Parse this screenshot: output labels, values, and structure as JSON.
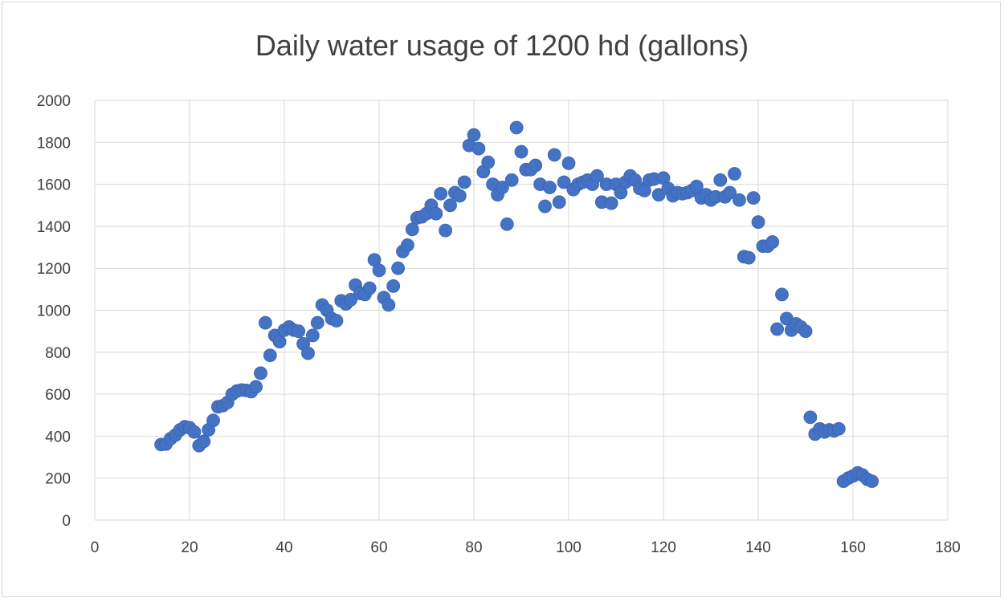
{
  "chart_data": {
    "type": "scatter",
    "title": "Daily water usage of 1200 hd (gallons)",
    "xlabel": "",
    "ylabel": "",
    "xlim": [
      0,
      180
    ],
    "ylim": [
      0,
      2000
    ],
    "x_ticks": [
      0,
      20,
      40,
      60,
      80,
      100,
      120,
      140,
      160,
      180
    ],
    "y_ticks": [
      0,
      200,
      400,
      600,
      800,
      1000,
      1200,
      1400,
      1600,
      1800,
      2000
    ],
    "grid": true,
    "legend": "none",
    "marker_color": "#4472C4",
    "points": [
      [
        14,
        360
      ],
      [
        15,
        362
      ],
      [
        16,
        388
      ],
      [
        17,
        405
      ],
      [
        18,
        430
      ],
      [
        19,
        445
      ],
      [
        20,
        440
      ],
      [
        21,
        420
      ],
      [
        22,
        355
      ],
      [
        23,
        375
      ],
      [
        24,
        430
      ],
      [
        25,
        475
      ],
      [
        26,
        540
      ],
      [
        27,
        545
      ],
      [
        28,
        560
      ],
      [
        29,
        600
      ],
      [
        30,
        615
      ],
      [
        31,
        620
      ],
      [
        32,
        618
      ],
      [
        33,
        612
      ],
      [
        34,
        635
      ],
      [
        35,
        700
      ],
      [
        36,
        940
      ],
      [
        37,
        785
      ],
      [
        38,
        880
      ],
      [
        39,
        850
      ],
      [
        40,
        905
      ],
      [
        41,
        920
      ],
      [
        42,
        905
      ],
      [
        43,
        900
      ],
      [
        44,
        840
      ],
      [
        45,
        795
      ],
      [
        46,
        880
      ],
      [
        47,
        940
      ],
      [
        48,
        1025
      ],
      [
        49,
        1000
      ],
      [
        50,
        960
      ],
      [
        51,
        950
      ],
      [
        52,
        1045
      ],
      [
        53,
        1030
      ],
      [
        54,
        1050
      ],
      [
        55,
        1120
      ],
      [
        56,
        1080
      ],
      [
        57,
        1075
      ],
      [
        58,
        1105
      ],
      [
        59,
        1240
      ],
      [
        60,
        1190
      ],
      [
        61,
        1060
      ],
      [
        62,
        1025
      ],
      [
        63,
        1115
      ],
      [
        64,
        1200
      ],
      [
        65,
        1280
      ],
      [
        66,
        1310
      ],
      [
        67,
        1385
      ],
      [
        68,
        1440
      ],
      [
        69,
        1445
      ],
      [
        70,
        1460
      ],
      [
        71,
        1500
      ],
      [
        72,
        1460
      ],
      [
        73,
        1555
      ],
      [
        74,
        1380
      ],
      [
        75,
        1500
      ],
      [
        76,
        1560
      ],
      [
        77,
        1545
      ],
      [
        78,
        1610
      ],
      [
        79,
        1785
      ],
      [
        80,
        1835
      ],
      [
        81,
        1770
      ],
      [
        82,
        1660
      ],
      [
        83,
        1705
      ],
      [
        84,
        1600
      ],
      [
        85,
        1550
      ],
      [
        86,
        1585
      ],
      [
        87,
        1410
      ],
      [
        88,
        1620
      ],
      [
        89,
        1870
      ],
      [
        90,
        1755
      ],
      [
        91,
        1670
      ],
      [
        92,
        1670
      ],
      [
        93,
        1690
      ],
      [
        94,
        1600
      ],
      [
        95,
        1495
      ],
      [
        96,
        1585
      ],
      [
        97,
        1740
      ],
      [
        98,
        1515
      ],
      [
        99,
        1610
      ],
      [
        100,
        1700
      ],
      [
        101,
        1575
      ],
      [
        102,
        1600
      ],
      [
        103,
        1610
      ],
      [
        104,
        1620
      ],
      [
        105,
        1600
      ],
      [
        106,
        1640
      ],
      [
        107,
        1515
      ],
      [
        108,
        1600
      ],
      [
        109,
        1510
      ],
      [
        110,
        1600
      ],
      [
        111,
        1560
      ],
      [
        112,
        1610
      ],
      [
        113,
        1640
      ],
      [
        114,
        1620
      ],
      [
        115,
        1580
      ],
      [
        116,
        1570
      ],
      [
        117,
        1620
      ],
      [
        118,
        1625
      ],
      [
        119,
        1550
      ],
      [
        120,
        1630
      ],
      [
        121,
        1580
      ],
      [
        122,
        1545
      ],
      [
        123,
        1560
      ],
      [
        124,
        1555
      ],
      [
        125,
        1560
      ],
      [
        126,
        1570
      ],
      [
        127,
        1590
      ],
      [
        128,
        1535
      ],
      [
        129,
        1550
      ],
      [
        130,
        1525
      ],
      [
        131,
        1540
      ],
      [
        132,
        1620
      ],
      [
        133,
        1540
      ],
      [
        134,
        1560
      ],
      [
        135,
        1650
      ],
      [
        136,
        1525
      ],
      [
        137,
        1255
      ],
      [
        138,
        1250
      ],
      [
        139,
        1535
      ],
      [
        140,
        1420
      ],
      [
        141,
        1305
      ],
      [
        142,
        1305
      ],
      [
        143,
        1325
      ],
      [
        144,
        910
      ],
      [
        145,
        1075
      ],
      [
        146,
        960
      ],
      [
        147,
        905
      ],
      [
        148,
        935
      ],
      [
        149,
        920
      ],
      [
        150,
        900
      ],
      [
        151,
        490
      ],
      [
        152,
        410
      ],
      [
        153,
        435
      ],
      [
        154,
        420
      ],
      [
        155,
        430
      ],
      [
        156,
        425
      ],
      [
        157,
        435
      ],
      [
        158,
        185
      ],
      [
        159,
        200
      ],
      [
        160,
        210
      ],
      [
        161,
        225
      ],
      [
        162,
        215
      ],
      [
        163,
        195
      ],
      [
        164,
        185
      ]
    ]
  }
}
